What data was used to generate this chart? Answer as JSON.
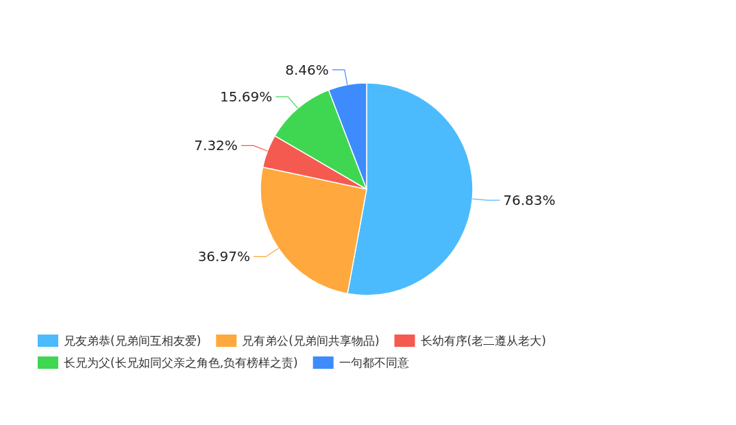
{
  "chart_data": {
    "type": "pie",
    "categories": [
      "兄友弟恭(兄弟间互相友爱)",
      "兄有弟公(兄弟间共享物品)",
      "长幼有序(老二遵从老大)",
      "长兄为父(长兄如同父亲之角色,负有榜样之责)",
      "一句都不同意"
    ],
    "values": [
      76.83,
      36.97,
      7.32,
      15.69,
      8.46
    ],
    "value_labels": [
      "76.83%",
      "36.97%",
      "7.32%",
      "15.69%",
      "8.46%"
    ],
    "colors": [
      "#4cbbfd",
      "#ffa83d",
      "#f55a50",
      "#3fd752",
      "#3d8bfd"
    ],
    "legend": "bottom"
  }
}
